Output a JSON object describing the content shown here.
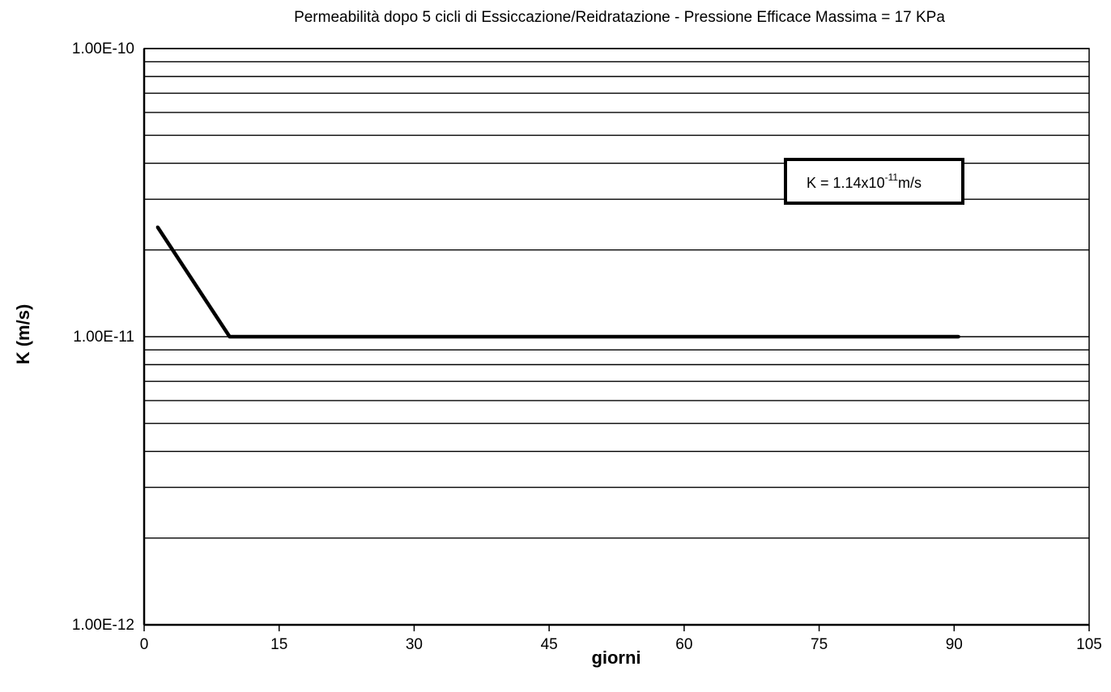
{
  "chart_data": {
    "type": "line",
    "title": "Permeabilità dopo 5 cicli di Essiccazione/Reidratazione  - Pressione Efficace Massima = 17 KPa",
    "xlabel": "giorni",
    "ylabel": "K (m/s)",
    "xlim": [
      0,
      105
    ],
    "ylim": [
      1e-12,
      1e-10
    ],
    "y_scale": "log",
    "x_ticks": [
      0,
      15,
      30,
      45,
      60,
      75,
      90,
      105
    ],
    "x_tick_labels": [
      "0",
      "15",
      "30",
      "45",
      "60",
      "75",
      "90",
      "105"
    ],
    "y_ticks": [
      1e-12,
      1e-11,
      1e-10
    ],
    "y_tick_labels": [
      "1.00E-12",
      "1.00E-11",
      "1.00E-10"
    ],
    "grid": "horizontal minor and major lines",
    "series": [
      {
        "x": [
          1.5,
          9.5,
          90.5
        ],
        "y": [
          2.4e-11,
          1e-11,
          1e-11
        ]
      }
    ],
    "annotation": {
      "text": "K = 1.14x10",
      "exponent": "-11",
      "unit": "m/s"
    },
    "colors": {
      "line": "#000000",
      "grid": "#000000",
      "background": "#ffffff"
    }
  }
}
